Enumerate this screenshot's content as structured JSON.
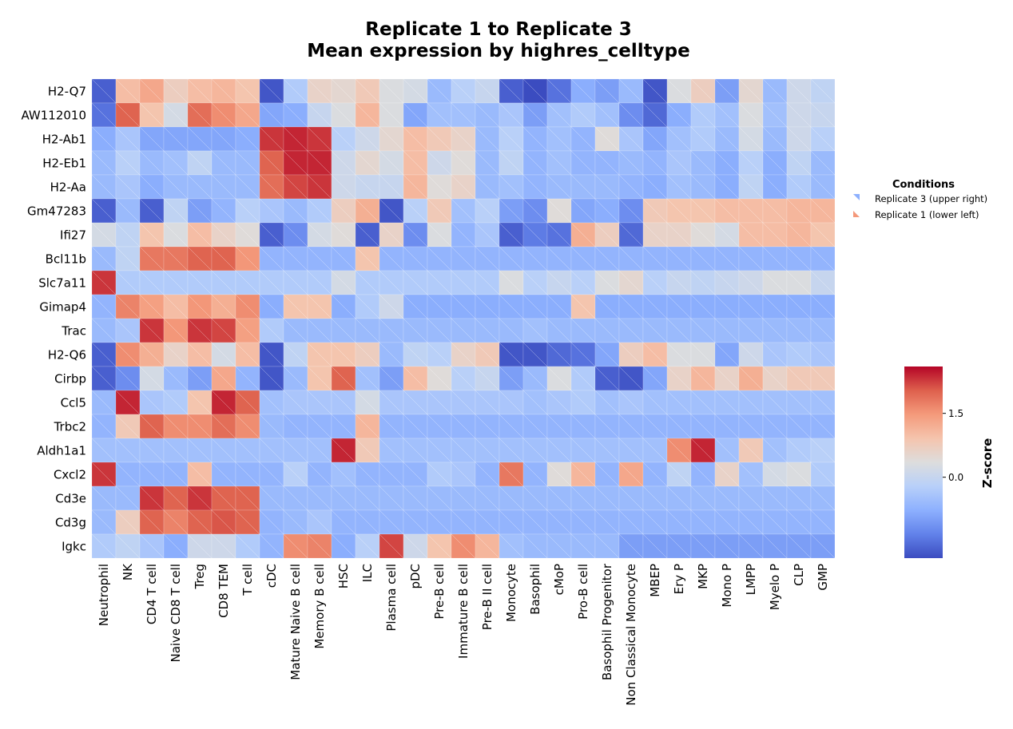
{
  "chart_data": {
    "type": "heatmap",
    "title": [
      "Replicate 1 to Replicate 3",
      "Mean expression by highres_celltype"
    ],
    "genes": [
      "H2-Q7",
      "AW112010",
      "H2-Ab1",
      "H2-Eb1",
      "H2-Aa",
      "Gm47283",
      "Ifi27",
      "Bcl11b",
      "Slc7a11",
      "Gimap4",
      "Trac",
      "H2-Q6",
      "Cirbp",
      "Ccl5",
      "Trbc2",
      "Aldh1a1",
      "Cxcl2",
      "Cd3e",
      "Cd3g",
      "Igkc"
    ],
    "cell_types": [
      "Neutrophil",
      "NK",
      "CD4 T cell",
      "Naive CD8 T cell",
      "Treg",
      "CD8 TEM",
      "T cell",
      "cDC",
      "Mature Naive B cell",
      "Memory B cell",
      "HSC",
      "ILC",
      "Plasma cell",
      "pDC",
      "Pre-B cell",
      "Immature B cell",
      "Pre-B II cell",
      "Monocyte",
      "Basophil",
      "cMoP",
      "Pro-B cell",
      "Basophil Progenitor",
      "Non Classical Monocyte",
      "MBEP",
      "Ery P",
      "MKP",
      "Mono P",
      "LMPP",
      "Myelo P",
      "CLP",
      "GMP"
    ],
    "legend": {
      "title": "Conditions",
      "entries": [
        {
          "label": "Replicate 3 (upper right)",
          "color": "#8db0fe"
        },
        {
          "label": "Replicate 1 (lower left)",
          "color": "#f4987a"
        }
      ],
      "placement": "right"
    },
    "colorbar": {
      "label": "Z-score",
      "ticks": [
        1.5,
        0.0
      ],
      "tick_labels": [
        "1.5",
        "0.0"
      ],
      "range": [
        -1.9,
        2.6
      ],
      "colormap": "coolwarm"
    },
    "replicate1_lower_left": [
      [
        -1.7,
        1.0,
        1.3,
        0.7,
        1.0,
        1.1,
        0.9,
        -1.8,
        -0.3,
        0.6,
        0.5,
        0.8,
        0.3,
        0.2,
        -0.6,
        -0.2,
        0.0,
        -1.7,
        -1.9,
        -1.5,
        -0.8,
        -1.0,
        -0.6,
        -1.8,
        0.3,
        0.7,
        -1.0,
        0.5,
        -0.6,
        0.1,
        -0.1
      ],
      [
        -1.5,
        2.0,
        0.9,
        0.2,
        1.9,
        1.6,
        1.3,
        -0.9,
        -0.8,
        0.0,
        0.3,
        1.1,
        0.3,
        -0.9,
        -0.5,
        -0.5,
        -0.6,
        -0.4,
        -1.0,
        -0.5,
        -0.3,
        -0.5,
        -1.2,
        -1.6,
        -0.8,
        -0.3,
        -0.5,
        0.3,
        -0.5,
        0.1,
        0.0
      ],
      [
        -0.8,
        -0.4,
        -0.9,
        -0.9,
        -0.9,
        -0.9,
        -0.8,
        2.3,
        2.4,
        2.3,
        -0.2,
        0.1,
        0.5,
        1.0,
        0.8,
        0.6,
        -0.6,
        -0.2,
        -0.7,
        -0.5,
        -0.7,
        0.4,
        -0.4,
        -0.9,
        -0.5,
        -0.3,
        -0.6,
        0.2,
        -0.6,
        0.1,
        -0.2
      ],
      [
        -0.6,
        -0.2,
        -0.6,
        -0.5,
        -0.1,
        -0.6,
        -0.6,
        2.0,
        2.4,
        2.4,
        0.1,
        0.5,
        0.2,
        1.0,
        0.1,
        0.4,
        -0.6,
        -0.1,
        -0.7,
        -0.5,
        -0.7,
        -0.7,
        -0.6,
        -0.7,
        -0.4,
        -0.6,
        -0.8,
        -0.2,
        -0.8,
        -0.1,
        -0.6
      ],
      [
        -0.6,
        -0.4,
        -0.8,
        -0.6,
        -0.6,
        -0.6,
        -0.6,
        1.9,
        2.2,
        2.3,
        0.1,
        0.0,
        0.0,
        1.1,
        0.4,
        0.6,
        -0.6,
        -0.5,
        -0.7,
        -0.6,
        -0.6,
        -0.6,
        -0.7,
        -0.8,
        -0.5,
        -0.6,
        -0.8,
        -0.1,
        -0.8,
        -0.3,
        -0.6
      ],
      [
        -1.7,
        -0.6,
        -1.7,
        -0.1,
        -1.0,
        -0.7,
        -0.2,
        -0.4,
        -0.6,
        -0.3,
        0.7,
        1.2,
        -1.8,
        -0.2,
        0.8,
        -0.5,
        -0.2,
        -1.0,
        -1.2,
        0.4,
        -0.9,
        -0.8,
        -1.2,
        0.8,
        0.9,
        0.9,
        1.0,
        1.0,
        1.0,
        1.1,
        1.1
      ],
      [
        0.2,
        -0.1,
        0.9,
        0.3,
        1.0,
        0.6,
        0.4,
        -1.7,
        -1.2,
        0.2,
        0.4,
        -1.7,
        0.6,
        -1.2,
        0.3,
        -0.7,
        -0.4,
        -1.7,
        -1.4,
        -1.5,
        1.2,
        0.7,
        -1.6,
        0.6,
        0.6,
        0.4,
        0.2,
        1.0,
        1.0,
        1.1,
        0.9
      ],
      [
        -0.6,
        -0.1,
        1.8,
        1.8,
        2.0,
        2.0,
        1.5,
        -0.7,
        -0.7,
        -0.7,
        -0.7,
        0.9,
        -0.7,
        -0.7,
        -0.7,
        -0.7,
        -0.7,
        -0.7,
        -0.7,
        -0.7,
        -0.7,
        -0.7,
        -0.7,
        -0.7,
        -0.7,
        -0.7,
        -0.7,
        -0.7,
        -0.7,
        -0.7,
        -0.7
      ],
      [
        2.3,
        -0.3,
        -0.3,
        -0.3,
        -0.3,
        -0.3,
        -0.3,
        -0.3,
        -0.3,
        -0.3,
        0.2,
        -0.3,
        -0.3,
        -0.3,
        -0.3,
        -0.3,
        -0.3,
        0.3,
        -0.2,
        0.0,
        -0.2,
        0.3,
        0.5,
        -0.2,
        0.0,
        -0.1,
        0.0,
        0.1,
        0.3,
        0.3,
        0.0
      ],
      [
        -0.7,
        1.7,
        1.4,
        1.0,
        1.5,
        1.2,
        1.6,
        -0.8,
        0.9,
        0.9,
        -0.8,
        -0.3,
        0.1,
        -0.8,
        -0.8,
        -0.8,
        -0.8,
        -0.8,
        -0.8,
        -0.8,
        0.9,
        -0.8,
        -0.8,
        -0.8,
        -0.8,
        -0.8,
        -0.8,
        -0.8,
        -0.8,
        -0.8,
        -0.8
      ],
      [
        -0.6,
        -0.4,
        2.3,
        1.5,
        2.3,
        2.2,
        1.4,
        -0.3,
        -0.6,
        -0.6,
        -0.6,
        -0.6,
        -0.6,
        -0.6,
        -0.6,
        -0.6,
        -0.6,
        -0.6,
        -0.5,
        -0.6,
        -0.6,
        -0.6,
        -0.6,
        -0.6,
        -0.6,
        -0.6,
        -0.6,
        -0.6,
        -0.6,
        -0.6,
        -0.6
      ],
      [
        -1.7,
        1.6,
        1.2,
        0.6,
        1.0,
        0.2,
        1.0,
        -1.8,
        -0.1,
        0.9,
        0.9,
        0.7,
        -0.6,
        -0.1,
        -0.2,
        0.6,
        0.8,
        -1.8,
        -1.8,
        -1.6,
        -1.5,
        -0.9,
        0.7,
        1.0,
        0.3,
        0.3,
        -0.9,
        0.1,
        -0.4,
        -0.3,
        -0.4
      ],
      [
        -1.7,
        -1.2,
        0.2,
        -0.6,
        -1.0,
        1.3,
        -0.7,
        -1.8,
        -0.6,
        0.9,
        2.0,
        -0.5,
        -1.0,
        1.0,
        0.4,
        -0.2,
        0.0,
        -1.0,
        -0.6,
        0.3,
        -0.3,
        -1.7,
        -1.8,
        -0.9,
        0.6,
        1.1,
        0.6,
        1.2,
        0.6,
        0.8,
        0.8
      ],
      [
        -0.6,
        2.4,
        -0.4,
        -0.3,
        0.9,
        2.4,
        2.0,
        -0.5,
        -0.4,
        -0.4,
        -0.4,
        0.2,
        -0.4,
        -0.4,
        -0.4,
        -0.4,
        -0.4,
        -0.4,
        -0.5,
        -0.4,
        -0.3,
        -0.5,
        -0.4,
        -0.5,
        -0.5,
        -0.5,
        -0.5,
        -0.5,
        -0.5,
        -0.5,
        -0.5
      ],
      [
        -0.7,
        0.8,
        2.0,
        1.6,
        1.6,
        1.9,
        1.6,
        -0.6,
        -0.7,
        -0.7,
        -0.7,
        1.1,
        -0.7,
        -0.7,
        -0.7,
        -0.7,
        -0.7,
        -0.7,
        -0.7,
        -0.7,
        -0.7,
        -0.7,
        -0.7,
        -0.7,
        -0.7,
        -0.7,
        -0.7,
        -0.7,
        -0.7,
        -0.7,
        -0.7
      ],
      [
        -0.5,
        -0.5,
        -0.5,
        -0.5,
        -0.5,
        -0.5,
        -0.5,
        -0.5,
        -0.5,
        -0.5,
        2.4,
        0.8,
        -0.5,
        -0.5,
        -0.5,
        -0.5,
        -0.5,
        -0.5,
        -0.5,
        -0.5,
        -0.5,
        -0.5,
        -0.5,
        -0.5,
        1.6,
        2.4,
        -0.5,
        0.8,
        -0.5,
        -0.3,
        -0.2
      ],
      [
        2.3,
        -0.7,
        -0.7,
        -0.7,
        1.0,
        -0.7,
        -0.7,
        -0.7,
        -0.2,
        -0.7,
        -0.5,
        -0.7,
        -0.7,
        -0.7,
        -0.3,
        -0.4,
        -0.7,
        1.8,
        -0.7,
        0.4,
        1.1,
        -0.7,
        1.3,
        -0.7,
        -0.1,
        -0.7,
        0.6,
        -0.5,
        0.2,
        0.3,
        -0.3
      ],
      [
        -0.6,
        -0.6,
        2.3,
        2.0,
        2.3,
        2.0,
        2.0,
        -0.6,
        -0.6,
        -0.6,
        -0.6,
        -0.6,
        -0.6,
        -0.6,
        -0.6,
        -0.6,
        -0.6,
        -0.6,
        -0.6,
        -0.6,
        -0.6,
        -0.6,
        -0.6,
        -0.6,
        -0.6,
        -0.6,
        -0.6,
        -0.6,
        -0.6,
        -0.6,
        -0.6
      ],
      [
        -0.6,
        0.7,
        2.0,
        1.7,
        2.0,
        2.1,
        2.0,
        -0.7,
        -0.6,
        -0.4,
        -0.7,
        -0.7,
        -0.7,
        -0.7,
        -0.7,
        -0.7,
        -0.7,
        -0.7,
        -0.7,
        -0.7,
        -0.7,
        -0.7,
        -0.7,
        -0.7,
        -0.7,
        -0.7,
        -0.7,
        -0.7,
        -0.7,
        -0.7,
        -0.7
      ],
      [
        -0.3,
        -0.1,
        -0.4,
        -0.8,
        0.1,
        0.1,
        -0.3,
        -0.7,
        1.6,
        1.7,
        -0.8,
        -0.2,
        2.2,
        0.1,
        0.9,
        1.6,
        1.1,
        -0.5,
        -0.6,
        -0.6,
        -0.6,
        -0.6,
        -1.0,
        -1.0,
        -1.0,
        -1.0,
        -1.0,
        -1.0,
        -1.0,
        -1.0,
        -1.0
      ]
    ],
    "replicate3_upper_right": [
      [
        -1.7,
        1.0,
        1.3,
        0.7,
        1.0,
        1.1,
        0.9,
        -1.8,
        -0.3,
        0.6,
        0.5,
        0.8,
        0.3,
        0.2,
        -0.6,
        -0.2,
        0.0,
        -1.7,
        -1.9,
        -1.5,
        -0.8,
        -1.0,
        -0.6,
        -1.8,
        0.3,
        0.7,
        -1.0,
        0.5,
        -0.6,
        0.1,
        -0.1
      ],
      [
        -1.5,
        2.0,
        0.9,
        0.2,
        1.9,
        1.6,
        1.3,
        -0.9,
        -0.8,
        0.0,
        0.3,
        1.1,
        0.3,
        -0.9,
        -0.5,
        -0.5,
        -0.6,
        -0.4,
        -1.0,
        -0.5,
        -0.3,
        -0.5,
        -1.2,
        -1.6,
        -0.8,
        -0.3,
        -0.5,
        0.3,
        -0.5,
        0.1,
        0.0
      ],
      [
        -0.8,
        -0.4,
        -0.9,
        -0.9,
        -0.9,
        -0.9,
        -0.8,
        2.3,
        2.4,
        2.3,
        -0.2,
        0.1,
        0.5,
        1.0,
        0.8,
        0.6,
        -0.6,
        -0.2,
        -0.7,
        -0.5,
        -0.7,
        0.4,
        -0.4,
        -0.9,
        -0.5,
        -0.3,
        -0.6,
        0.2,
        -0.6,
        0.1,
        -0.2
      ],
      [
        -0.6,
        -0.2,
        -0.6,
        -0.5,
        -0.1,
        -0.6,
        -0.6,
        2.0,
        2.4,
        2.4,
        0.1,
        0.5,
        0.2,
        1.0,
        0.1,
        0.4,
        -0.6,
        -0.1,
        -0.7,
        -0.5,
        -0.7,
        -0.7,
        -0.6,
        -0.7,
        -0.4,
        -0.6,
        -0.8,
        -0.2,
        -0.8,
        -0.1,
        -0.6
      ],
      [
        -0.6,
        -0.4,
        -0.8,
        -0.6,
        -0.6,
        -0.6,
        -0.6,
        1.9,
        2.2,
        2.3,
        0.1,
        0.0,
        0.0,
        1.1,
        0.4,
        0.6,
        -0.6,
        -0.5,
        -0.7,
        -0.6,
        -0.6,
        -0.6,
        -0.7,
        -0.8,
        -0.5,
        -0.6,
        -0.8,
        -0.1,
        -0.8,
        -0.3,
        -0.6
      ],
      [
        -1.7,
        -0.6,
        -1.7,
        -0.1,
        -1.0,
        -0.7,
        -0.2,
        -0.4,
        -0.6,
        -0.3,
        0.7,
        1.2,
        -1.8,
        -0.2,
        0.8,
        -0.5,
        -0.2,
        -1.0,
        -1.2,
        0.4,
        -0.9,
        -0.8,
        -1.2,
        0.8,
        0.9,
        0.9,
        1.0,
        1.0,
        1.0,
        1.1,
        1.1
      ],
      [
        0.2,
        -0.1,
        0.9,
        0.3,
        1.0,
        0.6,
        0.4,
        -1.7,
        -1.2,
        0.2,
        0.4,
        -1.7,
        0.6,
        -1.2,
        0.3,
        -0.7,
        -0.4,
        -1.7,
        -1.4,
        -1.5,
        1.2,
        0.7,
        -1.6,
        0.6,
        0.6,
        0.4,
        0.2,
        1.0,
        1.0,
        1.1,
        0.9
      ],
      [
        -0.6,
        -0.1,
        1.8,
        1.8,
        2.0,
        2.0,
        1.5,
        -0.7,
        -0.7,
        -0.7,
        -0.7,
        0.9,
        -0.7,
        -0.7,
        -0.7,
        -0.7,
        -0.7,
        -0.7,
        -0.7,
        -0.7,
        -0.7,
        -0.7,
        -0.7,
        -0.7,
        -0.7,
        -0.7,
        -0.7,
        -0.7,
        -0.7,
        -0.7,
        -0.7
      ],
      [
        2.3,
        -0.3,
        -0.3,
        -0.3,
        -0.3,
        -0.3,
        -0.3,
        -0.3,
        -0.3,
        -0.3,
        0.2,
        -0.3,
        -0.3,
        -0.3,
        -0.3,
        -0.3,
        -0.3,
        0.3,
        -0.2,
        0.0,
        -0.2,
        0.3,
        0.5,
        -0.2,
        0.0,
        -0.1,
        0.0,
        0.1,
        0.3,
        0.3,
        0.0
      ],
      [
        -0.7,
        1.7,
        1.4,
        1.0,
        1.5,
        1.2,
        1.6,
        -0.8,
        0.9,
        0.9,
        -0.8,
        -0.3,
        0.1,
        -0.8,
        -0.8,
        -0.8,
        -0.8,
        -0.8,
        -0.8,
        -0.8,
        0.9,
        -0.8,
        -0.8,
        -0.8,
        -0.8,
        -0.8,
        -0.8,
        -0.8,
        -0.8,
        -0.8,
        -0.8
      ],
      [
        -0.6,
        -0.4,
        2.3,
        1.5,
        2.3,
        2.2,
        1.4,
        -0.3,
        -0.6,
        -0.6,
        -0.6,
        -0.6,
        -0.6,
        -0.6,
        -0.6,
        -0.6,
        -0.6,
        -0.6,
        -0.5,
        -0.6,
        -0.6,
        -0.6,
        -0.6,
        -0.6,
        -0.6,
        -0.6,
        -0.6,
        -0.6,
        -0.6,
        -0.6,
        -0.6
      ],
      [
        -1.7,
        1.6,
        1.2,
        0.6,
        1.0,
        0.2,
        1.0,
        -1.8,
        -0.1,
        0.9,
        0.9,
        0.7,
        -0.6,
        -0.1,
        -0.2,
        0.6,
        0.8,
        -1.8,
        -1.8,
        -1.6,
        -1.5,
        -0.9,
        0.7,
        1.0,
        0.3,
        0.3,
        -0.9,
        0.1,
        -0.4,
        -0.3,
        -0.4
      ],
      [
        -1.7,
        -1.2,
        0.2,
        -0.6,
        -1.0,
        1.3,
        -0.7,
        -1.8,
        -0.6,
        0.9,
        2.0,
        -0.5,
        -1.0,
        1.0,
        0.4,
        -0.2,
        0.0,
        -1.0,
        -0.6,
        0.3,
        -0.3,
        -1.7,
        -1.8,
        -0.9,
        0.6,
        1.1,
        0.6,
        1.2,
        0.6,
        0.8,
        0.8
      ],
      [
        -0.6,
        2.4,
        -0.4,
        -0.3,
        0.9,
        2.4,
        2.0,
        -0.5,
        -0.4,
        -0.4,
        -0.4,
        0.2,
        -0.4,
        -0.4,
        -0.4,
        -0.4,
        -0.4,
        -0.4,
        -0.5,
        -0.4,
        -0.3,
        -0.5,
        -0.4,
        -0.5,
        -0.5,
        -0.5,
        -0.5,
        -0.5,
        -0.5,
        -0.5,
        -0.5
      ],
      [
        -0.7,
        0.8,
        2.0,
        1.6,
        1.6,
        1.9,
        1.6,
        -0.6,
        -0.7,
        -0.7,
        -0.7,
        1.1,
        -0.7,
        -0.7,
        -0.7,
        -0.7,
        -0.7,
        -0.7,
        -0.7,
        -0.7,
        -0.7,
        -0.7,
        -0.7,
        -0.7,
        -0.7,
        -0.7,
        -0.7,
        -0.7,
        -0.7,
        -0.7,
        -0.7
      ],
      [
        -0.5,
        -0.5,
        -0.5,
        -0.5,
        -0.5,
        -0.5,
        -0.5,
        -0.5,
        -0.5,
        -0.5,
        2.4,
        0.8,
        -0.5,
        -0.5,
        -0.5,
        -0.5,
        -0.5,
        -0.5,
        -0.5,
        -0.5,
        -0.5,
        -0.5,
        -0.5,
        -0.5,
        1.6,
        2.4,
        -0.5,
        0.8,
        -0.5,
        -0.3,
        -0.2
      ],
      [
        2.3,
        -0.7,
        -0.7,
        -0.7,
        1.0,
        -0.7,
        -0.7,
        -0.7,
        -0.2,
        -0.7,
        -0.5,
        -0.7,
        -0.7,
        -0.7,
        -0.3,
        -0.4,
        -0.7,
        1.8,
        -0.7,
        0.4,
        1.1,
        -0.7,
        1.3,
        -0.7,
        -0.1,
        -0.7,
        0.6,
        -0.5,
        0.2,
        0.3,
        -0.3
      ],
      [
        -0.6,
        -0.6,
        2.3,
        2.0,
        2.3,
        2.0,
        2.0,
        -0.6,
        -0.6,
        -0.6,
        -0.6,
        -0.6,
        -0.6,
        -0.6,
        -0.6,
        -0.6,
        -0.6,
        -0.6,
        -0.6,
        -0.6,
        -0.6,
        -0.6,
        -0.6,
        -0.6,
        -0.6,
        -0.6,
        -0.6,
        -0.6,
        -0.6,
        -0.6,
        -0.6
      ],
      [
        -0.6,
        0.7,
        2.0,
        1.7,
        2.0,
        2.1,
        2.0,
        -0.7,
        -0.6,
        -0.4,
        -0.7,
        -0.7,
        -0.7,
        -0.7,
        -0.7,
        -0.7,
        -0.7,
        -0.7,
        -0.7,
        -0.7,
        -0.7,
        -0.7,
        -0.7,
        -0.7,
        -0.7,
        -0.7,
        -0.7,
        -0.7,
        -0.7,
        -0.7,
        -0.7
      ],
      [
        -0.3,
        -0.1,
        -0.4,
        -0.8,
        0.1,
        0.1,
        -0.3,
        -0.7,
        1.6,
        1.7,
        -0.8,
        -0.2,
        2.2,
        0.1,
        0.9,
        1.6,
        1.1,
        -0.5,
        -0.6,
        -0.6,
        -0.6,
        -0.6,
        -1.0,
        -1.0,
        -1.0,
        -1.0,
        -1.0,
        -1.0,
        -1.0,
        -1.0,
        -1.0
      ]
    ]
  }
}
